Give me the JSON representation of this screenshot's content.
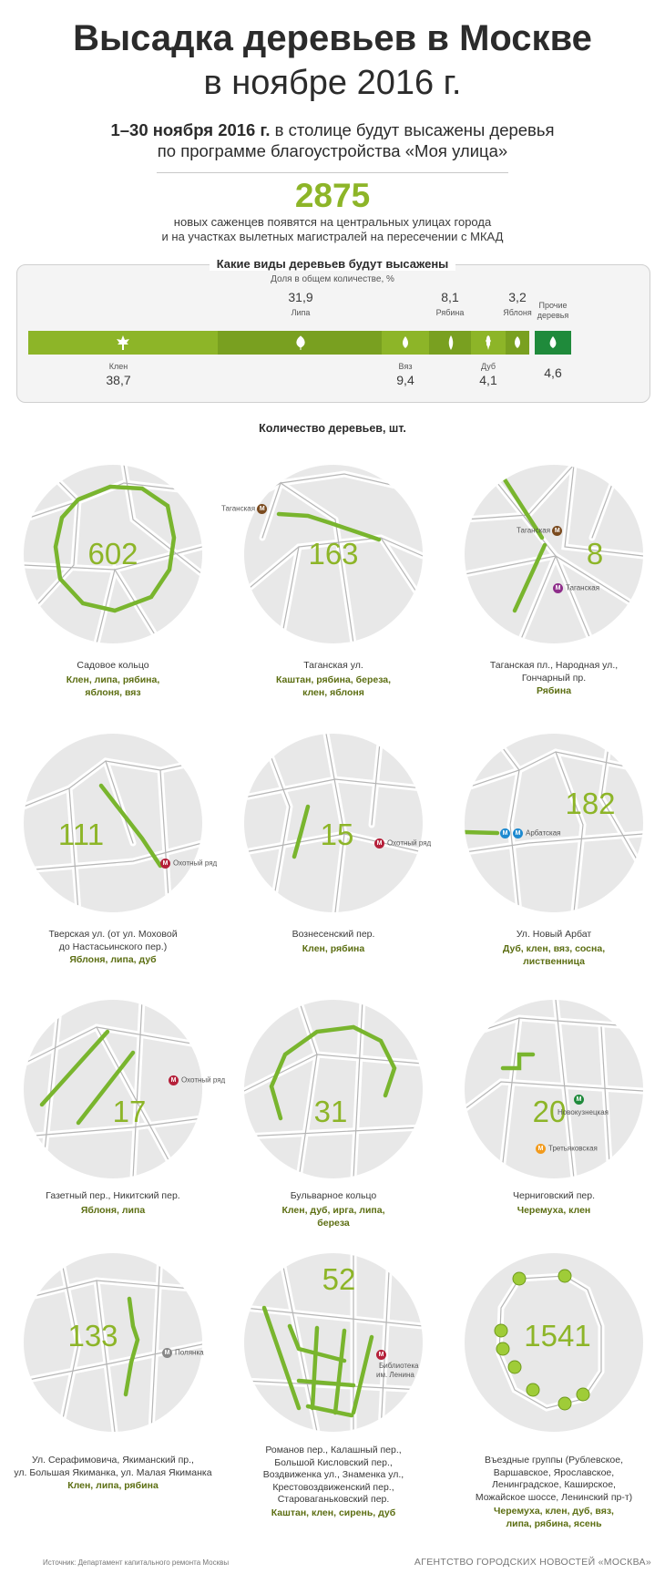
{
  "header": {
    "title_line1": "Высадка деревьев в Москве",
    "title_line2": "в ноябре 2016 г.",
    "intro_bold": "1–30 ноября 2016 г.",
    "intro_rest1": " в столице будут высажены деревья",
    "intro_line2": "по программе благоустройства «Моя улица»",
    "total": "2875",
    "total_line1": "новых саженцев появятся на центральных улицах города",
    "total_line2": "и на участках вылетных магистралей на пересечении с МКАД"
  },
  "species_panel": {
    "title": "Какие виды деревьев будут высажены",
    "subtitle": "Доля в общем количестве, %",
    "items": [
      {
        "name": "Клен",
        "value": "38,7",
        "share": 38.7,
        "color": "#8db528"
      },
      {
        "name": "Липа",
        "value": "31,9",
        "share": 31.9,
        "color": "#79a020"
      },
      {
        "name": "Вяз",
        "value": "9,4",
        "share": 9.4,
        "color": "#8db528"
      },
      {
        "name": "Рябина",
        "value": "8,1",
        "share": 8.1,
        "color": "#79a020"
      },
      {
        "name": "Дуб",
        "value": "4,1",
        "share": 4.1,
        "color": "#8db528"
      },
      {
        "name": "Яблоня",
        "value": "3,2",
        "share": 3.2,
        "color": "#79a020"
      },
      {
        "name_line1": "Прочие",
        "name_line2": "деревья",
        "value": "4,6",
        "share": 4.6,
        "color": "#1f8a3b"
      }
    ]
  },
  "count_title": "Количество деревьев, шт.",
  "streets": [
    {
      "count": "602",
      "caption": [
        "Садовое кольцо"
      ],
      "species": [
        "Клен, липа, рябина,",
        "яблоня, вяз"
      ]
    },
    {
      "count": "163",
      "metro": [
        "Таганская"
      ],
      "caption": [
        "Таганская ул."
      ],
      "species": [
        "Каштан, рябина, береза,",
        "клен, яблоня"
      ]
    },
    {
      "count": "8",
      "metro": [
        "Таганская",
        "Таганская"
      ],
      "caption": [
        "Таганская пл., Народная ул.,",
        "Гончарный пр."
      ],
      "species": [
        "Рябина"
      ]
    },
    {
      "count": "111",
      "metro": [
        "Охотный ряд"
      ],
      "caption": [
        "Тверская ул. (от ул. Моховой",
        "до Настасьинского пер.)"
      ],
      "species": [
        "Яблоня, липа, дуб"
      ]
    },
    {
      "count": "15",
      "metro": [
        "Охотный ряд"
      ],
      "caption": [
        "Вознесенский пер."
      ],
      "species": [
        "Клен, рябина"
      ]
    },
    {
      "count": "182",
      "metro": [
        "Арбатская"
      ],
      "caption": [
        "Ул. Новый Арбат"
      ],
      "species": [
        "Дуб, клен, вяз, сосна,",
        "лиственница"
      ]
    },
    {
      "count": "17",
      "metro": [
        "Охотный ряд"
      ],
      "caption": [
        "Газетный пер., Никитский пер."
      ],
      "species": [
        "Яблоня, липа"
      ]
    },
    {
      "count": "31",
      "caption": [
        "Бульварное кольцо"
      ],
      "species": [
        "Клен, дуб, ирга, липа,",
        "береза"
      ]
    },
    {
      "count": "20",
      "metro": [
        "Новокузнецкая",
        "Третьяковская"
      ],
      "caption": [
        "Черниговский пер."
      ],
      "species": [
        "Черемуха, клен"
      ]
    },
    {
      "count": "133",
      "metro": [
        "Полянка"
      ],
      "caption": [
        "Ул. Серафимовича, Якиманский пр.,",
        "ул. Большая Якиманка, ул. Малая Якиманка"
      ],
      "species": [
        "Клен, липа, рябина"
      ]
    },
    {
      "count": "52",
      "metro": [
        "Библиотека",
        "им. Ленина"
      ],
      "caption": [
        "Романов пер., Калашный пер.,",
        "Большой Кисловский пер.,",
        "Воздвиженка ул., Знаменка ул.,",
        "Крестовоздвиженский пер.,",
        "Староваганьковский пер."
      ],
      "species": [
        "Каштан, клен, сирень, дуб"
      ]
    },
    {
      "count": "1541",
      "caption": [
        "Въездные группы (Рублевское,",
        "Варшавское, Ярославское,",
        "Ленинградское, Каширское,",
        "Можайское шоссе, Ленинский пр-т)"
      ],
      "species": [
        "Черемуха, клен, дуб, вяз,",
        "липа, рябина, ясень"
      ]
    }
  ],
  "footer": {
    "source": "Источник: Департамент капитального ремонта Москвы",
    "agency": "АГЕНТСТВО ГОРОДСКИХ НОВОСТЕЙ «МОСКВА»"
  },
  "colors": {
    "accent": "#8db528",
    "dark_green": "#5c6e12",
    "metro_red": "#b5203a",
    "metro_brown": "#7a4a1e",
    "metro_green": "#1f8a3b",
    "metro_blue": "#1e8ad0",
    "metro_orange": "#f29b1d",
    "metro_purple": "#8e2d8a"
  }
}
